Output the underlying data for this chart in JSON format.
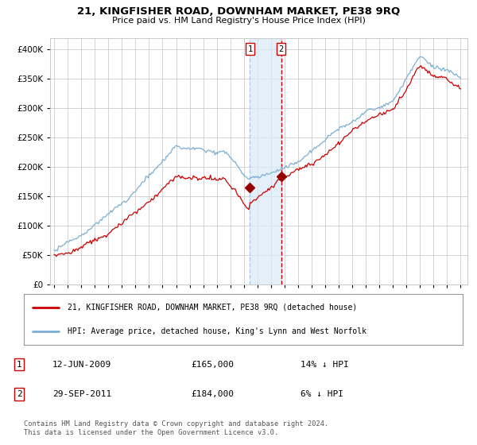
{
  "title": "21, KINGFISHER ROAD, DOWNHAM MARKET, PE38 9RQ",
  "subtitle": "Price paid vs. HM Land Registry's House Price Index (HPI)",
  "legend_line1": "21, KINGFISHER ROAD, DOWNHAM MARKET, PE38 9RQ (detached house)",
  "legend_line2": "HPI: Average price, detached house, King's Lynn and West Norfolk",
  "footer": "Contains HM Land Registry data © Crown copyright and database right 2024.\nThis data is licensed under the Open Government Licence v3.0.",
  "sale1_date": "12-JUN-2009",
  "sale1_price": "£165,000",
  "sale1_hpi": "14% ↓ HPI",
  "sale2_date": "29-SEP-2011",
  "sale2_price": "£184,000",
  "sale2_hpi": "6% ↓ HPI",
  "sale1_x": 2009.45,
  "sale2_x": 2011.75,
  "sale1_y": 165000,
  "sale2_y": 184000,
  "hpi_color": "#7bafd4",
  "price_color": "#cc0000",
  "marker_color": "#990000",
  "background_color": "#ffffff",
  "grid_color": "#cccccc",
  "ylim": [
    0,
    420000
  ],
  "xlim": [
    1994.7,
    2025.5
  ],
  "yticks": [
    0,
    50000,
    100000,
    150000,
    200000,
    250000,
    300000,
    350000,
    400000
  ],
  "xticks": [
    1995,
    1996,
    1997,
    1998,
    1999,
    2000,
    2001,
    2002,
    2003,
    2004,
    2005,
    2006,
    2007,
    2008,
    2009,
    2010,
    2011,
    2012,
    2013,
    2014,
    2015,
    2016,
    2017,
    2018,
    2019,
    2020,
    2021,
    2022,
    2023,
    2024,
    2025
  ]
}
